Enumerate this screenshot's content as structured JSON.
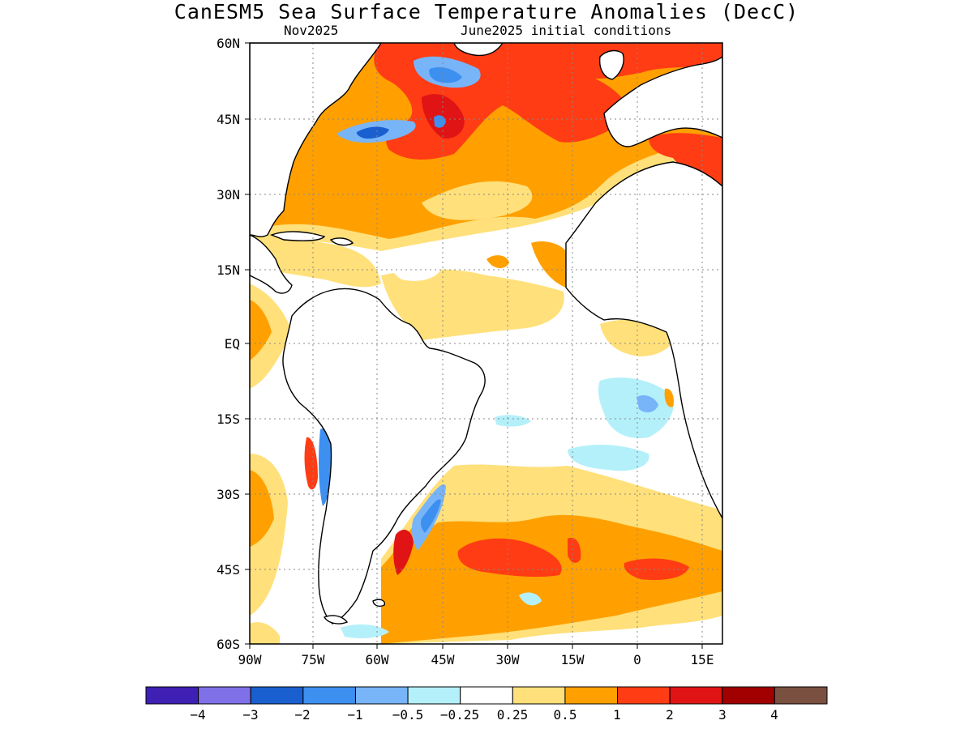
{
  "title": "CanESM5 Sea Surface Temperature Anomalies (DecC)",
  "subtitle_left": "Nov2025",
  "subtitle_right": "June2025 initial conditions",
  "map": {
    "lat_labels": [
      "60N",
      "45N",
      "30N",
      "15N",
      "EQ",
      "15S",
      "30S",
      "45S",
      "60S"
    ],
    "lon_labels": [
      "90W",
      "75W",
      "60W",
      "45W",
      "30W",
      "15W",
      "0",
      "15E"
    ],
    "grid": "dotted",
    "land_color": "#ffffff",
    "coastline_color": "#000000"
  },
  "colorbar": {
    "colors": [
      "#3f20b4",
      "#8070e8",
      "#1a5fd0",
      "#3d8ff0",
      "#78b4f8",
      "#b4f0fa",
      "#ffffff",
      "#ffe07a",
      "#ffa000",
      "#ff3c14",
      "#e01414",
      "#a00000",
      "#7a5040"
    ],
    "tick_labels": [
      "−4",
      "−3",
      "−2",
      "−1",
      "−0.5",
      "−0.25",
      "0.25",
      "0.5",
      "1",
      "2",
      "3",
      "4"
    ]
  }
}
